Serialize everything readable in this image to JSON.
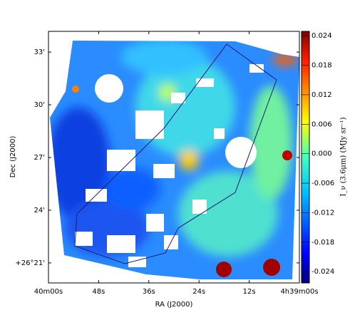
{
  "chart_data": {
    "type": "image",
    "xlabel": "RA (J2000)",
    "ylabel": "Dec (J2000)",
    "colorbar_label": "I_ν (3.6μm) (MJy sr⁻¹)",
    "xlim": [
      16800,
      16740
    ],
    "xticks": [
      {
        "value": 16800,
        "label": "40m00s"
      },
      {
        "value": 16788,
        "label": "48s"
      },
      {
        "value": 16776,
        "label": "36s"
      },
      {
        "value": 16764,
        "label": "24s"
      },
      {
        "value": 16752,
        "label": "12s"
      },
      {
        "value": 16740,
        "label": "4h39m00s"
      }
    ],
    "ylim": [
      19.86,
      34.18
    ],
    "yticks": [
      {
        "value": 33,
        "label": "33'"
      },
      {
        "value": 30,
        "label": "30'"
      },
      {
        "value": 27,
        "label": "27'"
      },
      {
        "value": 24,
        "label": "24'"
      },
      {
        "value": 21,
        "label": "+26°21'"
      }
    ],
    "clim": [
      -0.0263,
      0.0249
    ],
    "cticks": [
      0.024,
      0.018,
      0.012,
      0.006,
      {
        "value": 0,
        "label": "0.000"
      },
      -0.006,
      -0.012,
      -0.018,
      -0.024
    ],
    "colormap": "jet"
  }
}
